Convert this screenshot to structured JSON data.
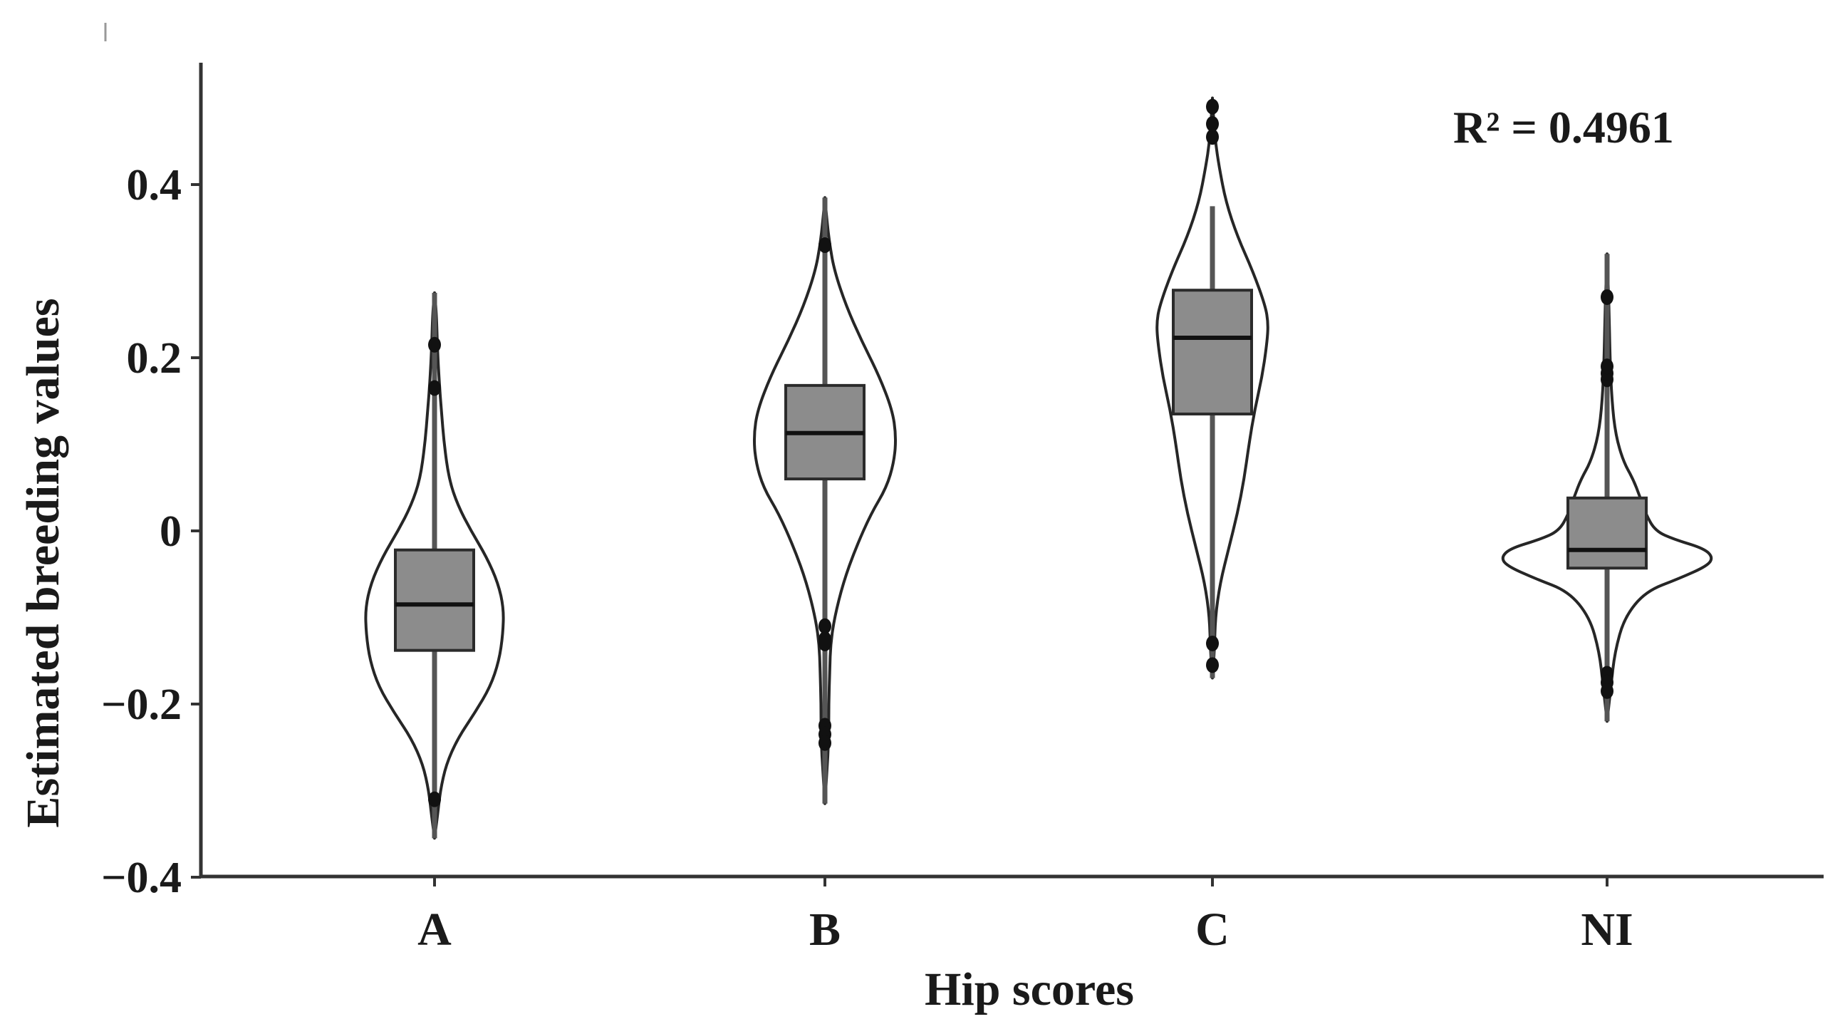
{
  "chart_data": {
    "type": "violin",
    "title": "",
    "xlabel": "Hip scores",
    "ylabel": "Estimated breeding values",
    "annotation": "R² = 0.4961",
    "ylim": [
      -0.4,
      0.55
    ],
    "yticks": [
      {
        "value": 0.4,
        "label": "0.4"
      },
      {
        "value": 0.2,
        "label": "0.2"
      },
      {
        "value": 0,
        "label": "0"
      },
      {
        "value": -0.2,
        "label": "−0.2"
      },
      {
        "value": -0.4,
        "label": "−0.4"
      }
    ],
    "categories": [
      "A",
      "B",
      "C",
      "NI"
    ],
    "groups": [
      {
        "category": "A",
        "violin": {
          "min": -0.355,
          "max": 0.275,
          "mode": -0.09,
          "max_halfwidth": 0.072,
          "profile": [
            [
              -0.355,
              0.0
            ],
            [
              -0.33,
              0.003
            ],
            [
              -0.3,
              0.006
            ],
            [
              -0.27,
              0.012
            ],
            [
              -0.24,
              0.024
            ],
            [
              -0.21,
              0.042
            ],
            [
              -0.18,
              0.058
            ],
            [
              -0.15,
              0.067
            ],
            [
              -0.12,
              0.071
            ],
            [
              -0.09,
              0.072
            ],
            [
              -0.06,
              0.066
            ],
            [
              -0.03,
              0.054
            ],
            [
              0.0,
              0.038
            ],
            [
              0.03,
              0.024
            ],
            [
              0.06,
              0.015
            ],
            [
              0.1,
              0.01
            ],
            [
              0.14,
              0.007
            ],
            [
              0.17,
              0.005
            ],
            [
              0.21,
              0.003
            ],
            [
              0.25,
              0.002
            ],
            [
              0.275,
              0.0
            ]
          ]
        },
        "box": {
          "q1": -0.138,
          "median": -0.085,
          "q3": -0.022
        },
        "whisker": [
          -0.355,
          0.275
        ],
        "outliers": [
          0.215,
          0.165,
          -0.31
        ]
      },
      {
        "category": "B",
        "violin": {
          "min": -0.315,
          "max": 0.385,
          "mode": 0.11,
          "max_halfwidth": 0.074,
          "profile": [
            [
              -0.315,
              0.0
            ],
            [
              -0.28,
              0.002
            ],
            [
              -0.24,
              0.004
            ],
            [
              -0.2,
              0.004
            ],
            [
              -0.16,
              0.005
            ],
            [
              -0.13,
              0.006
            ],
            [
              -0.1,
              0.01
            ],
            [
              -0.06,
              0.019
            ],
            [
              -0.02,
              0.032
            ],
            [
              0.02,
              0.048
            ],
            [
              0.05,
              0.064
            ],
            [
              0.08,
              0.072
            ],
            [
              0.11,
              0.074
            ],
            [
              0.14,
              0.07
            ],
            [
              0.18,
              0.056
            ],
            [
              0.22,
              0.038
            ],
            [
              0.26,
              0.022
            ],
            [
              0.3,
              0.01
            ],
            [
              0.33,
              0.005
            ],
            [
              0.36,
              0.002
            ],
            [
              0.385,
              0.0
            ]
          ]
        },
        "box": {
          "q1": 0.06,
          "median": 0.113,
          "q3": 0.168
        },
        "whisker": [
          -0.315,
          0.385
        ],
        "outliers": [
          -0.11,
          -0.125,
          -0.13,
          -0.225,
          -0.235,
          -0.245,
          0.33
        ]
      },
      {
        "category": "C",
        "violin": {
          "min": -0.17,
          "max": 0.5,
          "mode": 0.24,
          "max_halfwidth": 0.058,
          "profile": [
            [
              -0.17,
              0.0
            ],
            [
              -0.14,
              0.002
            ],
            [
              -0.1,
              0.003
            ],
            [
              -0.06,
              0.008
            ],
            [
              -0.02,
              0.017
            ],
            [
              0.02,
              0.026
            ],
            [
              0.06,
              0.033
            ],
            [
              0.1,
              0.038
            ],
            [
              0.14,
              0.044
            ],
            [
              0.18,
              0.052
            ],
            [
              0.22,
              0.057
            ],
            [
              0.24,
              0.058
            ],
            [
              0.26,
              0.055
            ],
            [
              0.3,
              0.042
            ],
            [
              0.34,
              0.026
            ],
            [
              0.38,
              0.014
            ],
            [
              0.42,
              0.007
            ],
            [
              0.45,
              0.003
            ],
            [
              0.48,
              0.001
            ],
            [
              0.5,
              0.0
            ]
          ]
        },
        "box": {
          "q1": 0.135,
          "median": 0.223,
          "q3": 0.278
        },
        "whisker": [
          -0.17,
          0.375
        ],
        "outliers": [
          -0.13,
          -0.155,
          0.455,
          0.47,
          0.49
        ]
      },
      {
        "category": "NI",
        "violin": {
          "min": -0.22,
          "max": 0.32,
          "mode": -0.03,
          "max_halfwidth": 0.11,
          "profile": [
            [
              -0.22,
              0.0
            ],
            [
              -0.18,
              0.004
            ],
            [
              -0.14,
              0.008
            ],
            [
              -0.1,
              0.018
            ],
            [
              -0.07,
              0.04
            ],
            [
              -0.055,
              0.075
            ],
            [
              -0.04,
              0.105
            ],
            [
              -0.03,
              0.11
            ],
            [
              -0.02,
              0.1
            ],
            [
              -0.01,
              0.07
            ],
            [
              0.0,
              0.05
            ],
            [
              0.02,
              0.04
            ],
            [
              0.04,
              0.034
            ],
            [
              0.06,
              0.027
            ],
            [
              0.08,
              0.017
            ],
            [
              0.11,
              0.009
            ],
            [
              0.15,
              0.005
            ],
            [
              0.2,
              0.003
            ],
            [
              0.26,
              0.002
            ],
            [
              0.32,
              0.0
            ]
          ]
        },
        "box": {
          "q1": -0.043,
          "median": -0.022,
          "q3": 0.038
        },
        "whisker": [
          -0.22,
          0.32
        ],
        "outliers": [
          0.27,
          0.175,
          0.182,
          0.19,
          -0.165,
          -0.175,
          -0.185
        ]
      }
    ],
    "colors": {
      "box_fill": "#8c8c8c",
      "line": "#2b2b2b",
      "violin_stroke": "#262626",
      "axis": "#333333"
    },
    "grid": false,
    "legend": "none"
  }
}
